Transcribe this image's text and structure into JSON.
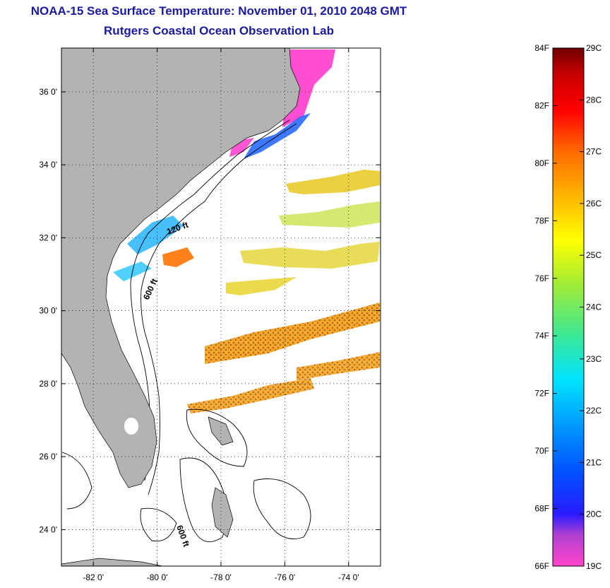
{
  "header": {
    "title": "NOAA-15 Sea Surface Temperature:  November 01, 2010 2048 GMT",
    "subtitle": "Rutgers Coastal Ocean Observation Lab"
  },
  "map": {
    "lon_range": [
      -83,
      -73
    ],
    "lat_range": [
      23,
      37.2
    ],
    "lon_ticks": [
      {
        "value": -82,
        "label": "-82 0'"
      },
      {
        "value": -80,
        "label": "-80 0'"
      },
      {
        "value": -78,
        "label": "-78 0'"
      },
      {
        "value": -76,
        "label": "-76 0'"
      },
      {
        "value": -74,
        "label": "-74 0'"
      }
    ],
    "lat_ticks": [
      {
        "value": 24,
        "label": "24 0'"
      },
      {
        "value": 26,
        "label": "26 0'"
      },
      {
        "value": 28,
        "label": "28 0'"
      },
      {
        "value": 30,
        "label": "30 0'"
      },
      {
        "value": 32,
        "label": "32 0'"
      },
      {
        "value": 34,
        "label": "34 0'"
      },
      {
        "value": 36,
        "label": "36 0'"
      }
    ],
    "grid": "dotted",
    "isobath_labels": [
      "120 ft",
      "600 ft",
      "600 ft"
    ],
    "land_color": "#b3b3b3"
  },
  "colorbar": {
    "fahrenheit_labels": [
      "84F",
      "82F",
      "80F",
      "78F",
      "76F",
      "74F",
      "72F",
      "70F",
      "68F",
      "66F"
    ],
    "celsius_labels": [
      "29C",
      "28C",
      "27C",
      "26C",
      "25C",
      "24C",
      "23C",
      "22C",
      "21C",
      "20C",
      "19C"
    ],
    "f_range": [
      66,
      84
    ],
    "c_range": [
      19,
      29
    ]
  }
}
